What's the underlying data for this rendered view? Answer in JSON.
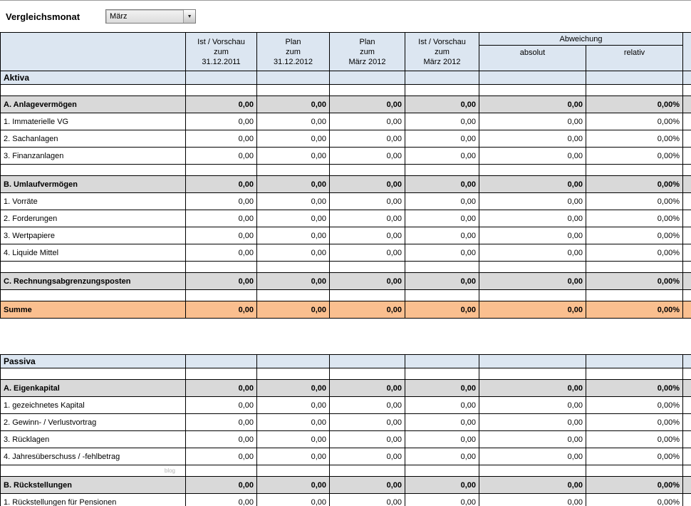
{
  "toolbar": {
    "label": "Vergleichsmonat",
    "month_value": "März",
    "dropdown_arrow": "▼"
  },
  "colors": {
    "header_bg": "#dce6f1",
    "group_bg": "#d9d9d9",
    "sum_bg": "#fabf8f"
  },
  "table": {
    "column_headers": [
      {
        "lines": [
          "Ist / Vorschau",
          "zum",
          "31.12.2011"
        ]
      },
      {
        "lines": [
          "Plan",
          "zum",
          "31.12.2012"
        ]
      },
      {
        "lines": [
          "Plan",
          "zum",
          "März 2012"
        ]
      },
      {
        "lines": [
          "Ist / Vorschau",
          "zum",
          "März 2012"
        ]
      }
    ],
    "abweichung": {
      "label": "Abweichung",
      "sub_columns": [
        "absolut",
        "relativ"
      ]
    },
    "rows": [
      {
        "type": "title",
        "label": "Aktiva"
      },
      {
        "type": "spacer",
        "label": ""
      },
      {
        "type": "group",
        "label": "A. Anlagevermögen",
        "values": [
          "0,00",
          "0,00",
          "0,00",
          "0,00",
          "0,00",
          "0,00%"
        ]
      },
      {
        "type": "item",
        "label": "1. Immaterielle VG",
        "values": [
          "0,00",
          "0,00",
          "0,00",
          "0,00",
          "0,00",
          "0,00%"
        ]
      },
      {
        "type": "item",
        "label": "2. Sachanlagen",
        "values": [
          "0,00",
          "0,00",
          "0,00",
          "0,00",
          "0,00",
          "0,00%"
        ]
      },
      {
        "type": "item",
        "label": "3. Finanzanlagen",
        "values": [
          "0,00",
          "0,00",
          "0,00",
          "0,00",
          "0,00",
          "0,00%"
        ]
      },
      {
        "type": "spacer",
        "label": ""
      },
      {
        "type": "group",
        "label": "B. Umlaufvermögen",
        "values": [
          "0,00",
          "0,00",
          "0,00",
          "0,00",
          "0,00",
          "0,00%"
        ]
      },
      {
        "type": "item",
        "label": "1. Vorräte",
        "values": [
          "0,00",
          "0,00",
          "0,00",
          "0,00",
          "0,00",
          "0,00%"
        ]
      },
      {
        "type": "item",
        "label": "2. Forderungen",
        "values": [
          "0,00",
          "0,00",
          "0,00",
          "0,00",
          "0,00",
          "0,00%"
        ]
      },
      {
        "type": "item",
        "label": "3. Wertpapiere",
        "values": [
          "0,00",
          "0,00",
          "0,00",
          "0,00",
          "0,00",
          "0,00%"
        ]
      },
      {
        "type": "item",
        "label": "4. Liquide Mittel",
        "values": [
          "0,00",
          "0,00",
          "0,00",
          "0,00",
          "0,00",
          "0,00%"
        ]
      },
      {
        "type": "spacer",
        "label": ""
      },
      {
        "type": "group",
        "label": "C. Rechnungsabgrenzungsposten",
        "values": [
          "0,00",
          "0,00",
          "0,00",
          "0,00",
          "0,00",
          "0,00%"
        ]
      },
      {
        "type": "spacer",
        "label": ""
      },
      {
        "type": "sum",
        "label": "Summe",
        "values": [
          "0,00",
          "0,00",
          "0,00",
          "0,00",
          "0,00",
          "0,00%"
        ]
      },
      {
        "type": "gap",
        "label": ""
      },
      {
        "type": "title",
        "label": "Passiva"
      },
      {
        "type": "spacer",
        "label": ""
      },
      {
        "type": "group",
        "label": "A. Eigenkapital",
        "values": [
          "0,00",
          "0,00",
          "0,00",
          "0,00",
          "0,00",
          "0,00%"
        ]
      },
      {
        "type": "item",
        "label": "1. gezeichnetes Kapital",
        "values": [
          "0,00",
          "0,00",
          "0,00",
          "0,00",
          "0,00",
          "0,00%"
        ]
      },
      {
        "type": "item",
        "label": "2. Gewinn- / Verlustvortrag",
        "values": [
          "0,00",
          "0,00",
          "0,00",
          "0,00",
          "0,00",
          "0,00%"
        ]
      },
      {
        "type": "item",
        "label": "3. Rücklagen",
        "values": [
          "0,00",
          "0,00",
          "0,00",
          "0,00",
          "0,00",
          "0,00%"
        ]
      },
      {
        "type": "item",
        "label": "4. Jahresüberschuss / -fehlbetrag",
        "values": [
          "0,00",
          "0,00",
          "0,00",
          "0,00",
          "0,00",
          "0,00%"
        ]
      },
      {
        "type": "spacer",
        "label": "",
        "watermark": "blog"
      },
      {
        "type": "group",
        "label": "B. Rückstellungen",
        "values": [
          "0,00",
          "0,00",
          "0,00",
          "0,00",
          "0,00",
          "0,00%"
        ]
      },
      {
        "type": "item",
        "label": "1. Rückstellungen für Pensionen",
        "values": [
          "0,00",
          "0,00",
          "0,00",
          "0,00",
          "0,00",
          "0,00%"
        ]
      }
    ]
  }
}
